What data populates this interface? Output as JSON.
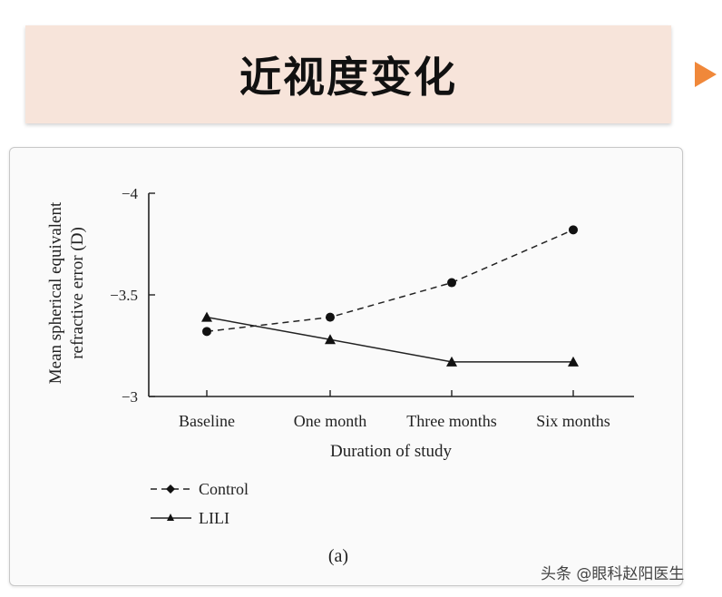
{
  "slide": {
    "title": "近视度变化",
    "accent_color": "#f0883a",
    "banner_color": "#f7e4da",
    "play_icon": "play-arrow-icon"
  },
  "chart_data": {
    "type": "line",
    "categories": [
      "Baseline",
      "One month",
      "Three months",
      "Six months"
    ],
    "series": [
      {
        "name": "Control",
        "values": [
          -3.32,
          -3.39,
          -3.56,
          -3.82
        ],
        "line_style": "dashed",
        "marker": "circle"
      },
      {
        "name": "LILI",
        "values": [
          -3.39,
          -3.28,
          -3.17,
          -3.17
        ],
        "line_style": "solid",
        "marker": "triangle"
      }
    ],
    "yticks": [
      -4,
      -3.5,
      -3
    ],
    "ytick_labels": [
      "−4",
      "−3.5",
      "−3"
    ],
    "ylim": [
      -3,
      -4
    ],
    "y_inverted": true,
    "xlabel": "Duration of study",
    "ylabel_line1": "Mean spherical equivalent",
    "ylabel_line2": "refractive error (D)",
    "caption": "(a)",
    "legend_position": "bottom-left",
    "grid": false
  },
  "watermark": "头条 @眼科赵阳医生"
}
